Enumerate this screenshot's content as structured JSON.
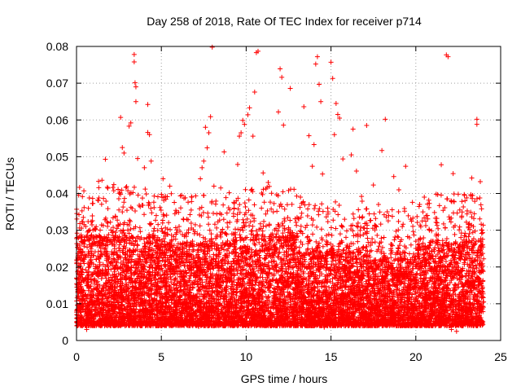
{
  "chart_data": {
    "type": "scatter",
    "title": "Day 258 of 2018, Rate Of TEC Index for receiver p714",
    "xlabel": "GPS time / hours",
    "ylabel": "ROTI / TECUs",
    "xlim": [
      0,
      25
    ],
    "ylim": [
      0,
      0.08
    ],
    "xticks": [
      0,
      5,
      10,
      15,
      20,
      25
    ],
    "xtick_labels": [
      "0",
      "5",
      "10",
      "15",
      "20",
      "25"
    ],
    "yticks": [
      0,
      0.01,
      0.02,
      0.03,
      0.04,
      0.05,
      0.06,
      0.07,
      0.08
    ],
    "ytick_labels": [
      "0",
      "0.01",
      "0.02",
      "0.03",
      "0.04",
      "0.05",
      "0.06",
      "0.07",
      "0.08"
    ],
    "grid": true,
    "marker": "+",
    "color": "#ff0000",
    "series": [
      {
        "name": "ROTI",
        "points": [
          [
            3.4,
            0.0778
          ],
          [
            3.4,
            0.0758
          ],
          [
            3.45,
            0.0701
          ],
          [
            3.5,
            0.069
          ],
          [
            3.5,
            0.065
          ],
          [
            2.6,
            0.0607
          ],
          [
            3.2,
            0.0592
          ],
          [
            3.1,
            0.0583
          ],
          [
            4.2,
            0.0642
          ],
          [
            4.2,
            0.0566
          ],
          [
            4.3,
            0.056
          ],
          [
            2.7,
            0.0525
          ],
          [
            2.8,
            0.051
          ],
          [
            3.6,
            0.0495
          ],
          [
            1.7,
            0.0493
          ],
          [
            1.5,
            0.0436
          ],
          [
            1.3,
            0.0433
          ],
          [
            2.2,
            0.0424
          ],
          [
            4.4,
            0.0488
          ],
          [
            4.0,
            0.047
          ],
          [
            7.6,
            0.058
          ],
          [
            7.9,
            0.0609
          ],
          [
            7.8,
            0.0565
          ],
          [
            7.7,
            0.0524
          ],
          [
            7.5,
            0.0488
          ],
          [
            7.4,
            0.047
          ],
          [
            7.3,
            0.044
          ],
          [
            8.0,
            0.0798
          ],
          [
            8.1,
            0.042
          ],
          [
            8.7,
            0.0513
          ],
          [
            9.6,
            0.0556
          ],
          [
            9.7,
            0.0565
          ],
          [
            9.8,
            0.0599
          ],
          [
            9.9,
            0.0588
          ],
          [
            10.1,
            0.0614
          ],
          [
            10.2,
            0.0633
          ],
          [
            9.5,
            0.0479
          ],
          [
            10.4,
            0.0556
          ],
          [
            10.6,
            0.0783
          ],
          [
            10.7,
            0.0787
          ],
          [
            10.5,
            0.0676
          ],
          [
            11.0,
            0.0456
          ],
          [
            11.3,
            0.043
          ],
          [
            12.0,
            0.0739
          ],
          [
            12.1,
            0.0716
          ],
          [
            11.9,
            0.0622
          ],
          [
            12.2,
            0.0586
          ],
          [
            12.6,
            0.0686
          ],
          [
            13.4,
            0.0636
          ],
          [
            13.7,
            0.0557
          ],
          [
            14.0,
            0.0533
          ],
          [
            14.2,
            0.0772
          ],
          [
            14.1,
            0.0752
          ],
          [
            14.3,
            0.0697
          ],
          [
            14.4,
            0.065
          ],
          [
            13.9,
            0.0474
          ],
          [
            14.5,
            0.0453
          ],
          [
            15.0,
            0.0757
          ],
          [
            15.1,
            0.0713
          ],
          [
            15.3,
            0.0645
          ],
          [
            15.4,
            0.0615
          ],
          [
            15.5,
            0.0605
          ],
          [
            15.2,
            0.056
          ],
          [
            15.7,
            0.0494
          ],
          [
            16.3,
            0.0575
          ],
          [
            16.2,
            0.0505
          ],
          [
            16.5,
            0.0461
          ],
          [
            17.1,
            0.0585
          ],
          [
            17.5,
            0.0423
          ],
          [
            18.0,
            0.0517
          ],
          [
            18.2,
            0.0602
          ],
          [
            18.7,
            0.0446
          ],
          [
            19.4,
            0.0474
          ],
          [
            19.0,
            0.041
          ],
          [
            21.8,
            0.0777
          ],
          [
            21.9,
            0.0772
          ],
          [
            22.2,
            0.0454
          ],
          [
            21.5,
            0.0478
          ],
          [
            23.6,
            0.0602
          ],
          [
            23.6,
            0.0588
          ],
          [
            23.3,
            0.0442
          ],
          [
            23.8,
            0.0432
          ],
          [
            5.1,
            0.044
          ],
          [
            5.5,
            0.042
          ],
          [
            6.2,
            0.0395
          ],
          [
            6.8,
            0.039
          ],
          [
            8.5,
            0.0415
          ],
          [
            9.0,
            0.0402
          ],
          [
            10.9,
            0.036
          ],
          [
            12.5,
            0.0408
          ],
          [
            13.2,
            0.039
          ],
          [
            16.8,
            0.0392
          ],
          [
            17.8,
            0.037
          ],
          [
            19.8,
            0.0376
          ],
          [
            20.5,
            0.039
          ],
          [
            21.2,
            0.0398
          ],
          [
            22.5,
            0.0398
          ],
          [
            22.9,
            0.038
          ],
          [
            0.4,
            0.0335
          ],
          [
            0.2,
            0.0318
          ],
          [
            0.7,
            0.0298
          ],
          [
            1.1,
            0.0305
          ],
          [
            2.0,
            0.0322
          ],
          [
            2.5,
            0.0355
          ],
          [
            4.7,
            0.034
          ],
          [
            5.8,
            0.0345
          ],
          [
            6.5,
            0.033
          ],
          [
            7.0,
            0.0315
          ],
          [
            11.6,
            0.035
          ],
          [
            13.0,
            0.0335
          ],
          [
            14.8,
            0.036
          ],
          [
            15.8,
            0.033
          ],
          [
            17.0,
            0.0318
          ],
          [
            18.4,
            0.034
          ],
          [
            19.2,
            0.031
          ],
          [
            20.0,
            0.027
          ],
          [
            20.2,
            0.0262
          ],
          [
            20.8,
            0.03
          ],
          [
            22.0,
            0.033
          ],
          [
            22.7,
            0.0335
          ],
          [
            23.1,
            0.031
          ],
          [
            23.9,
            0.03
          ],
          [
            0.3,
            0.0042
          ],
          [
            0.6,
            0.003
          ],
          [
            2.3,
            0.0045
          ],
          [
            5.0,
            0.004
          ],
          [
            7.2,
            0.0038
          ],
          [
            9.3,
            0.0045
          ],
          [
            12.8,
            0.004
          ],
          [
            14.6,
            0.0036
          ],
          [
            15.6,
            0.004
          ],
          [
            19.6,
            0.004
          ],
          [
            20.3,
            0.0042
          ],
          [
            22.1,
            0.003
          ],
          [
            22.4,
            0.0025
          ],
          [
            23.4,
            0.004
          ],
          [
            23.8,
            0.005
          ]
        ]
      }
    ],
    "dense_bands": [
      {
        "x_start": 0.0,
        "x_end": 4.6,
        "y_low": 0.004,
        "y_high": 0.028
      },
      {
        "x_start": 4.6,
        "x_end": 9.2,
        "y_low": 0.004,
        "y_high": 0.026
      },
      {
        "x_start": 9.2,
        "x_end": 13.0,
        "y_low": 0.004,
        "y_high": 0.028
      },
      {
        "x_start": 13.0,
        "x_end": 17.5,
        "y_low": 0.004,
        "y_high": 0.024
      },
      {
        "x_start": 17.5,
        "x_end": 20.0,
        "y_low": 0.004,
        "y_high": 0.022
      },
      {
        "x_start": 20.0,
        "x_end": 24.0,
        "y_low": 0.004,
        "y_high": 0.026
      }
    ]
  }
}
